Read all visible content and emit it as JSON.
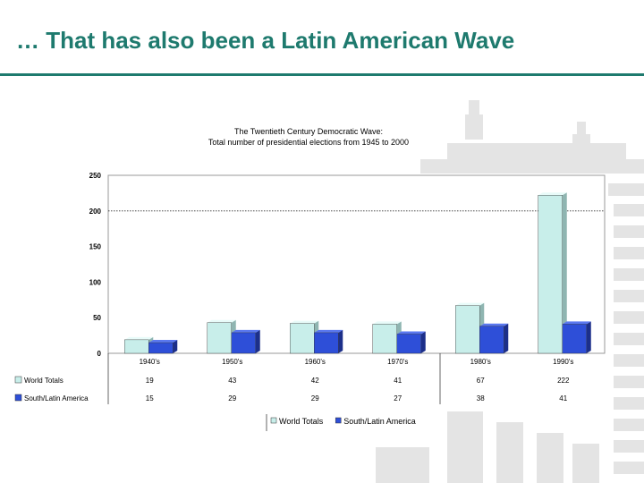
{
  "slide": {
    "title": "… That has also been a Latin American Wave"
  },
  "chart_data": {
    "type": "bar",
    "title": "The Twentieth Century Democratic Wave:",
    "subtitle": "Total number of presidential elections from 1945 to 2000",
    "categories": [
      "1940's",
      "1950's",
      "1960's",
      "1970's",
      "1980's",
      "1990's"
    ],
    "series": [
      {
        "name": "World Totals",
        "values": [
          19,
          43,
          42,
          41,
          67,
          222
        ],
        "color": "#c8eeea"
      },
      {
        "name": "South/Latin America",
        "values": [
          15,
          29,
          29,
          27,
          38,
          41
        ],
        "color": "#2e4fd8"
      }
    ],
    "ylim": [
      0,
      250
    ],
    "yticks": [
      0,
      50,
      100,
      150,
      200,
      250
    ],
    "grid": "dotted line at 200",
    "legend_position": "bottom",
    "data_table": true
  },
  "colors": {
    "accent": "#1e7a6e",
    "watermark": "#e4e4e4"
  }
}
